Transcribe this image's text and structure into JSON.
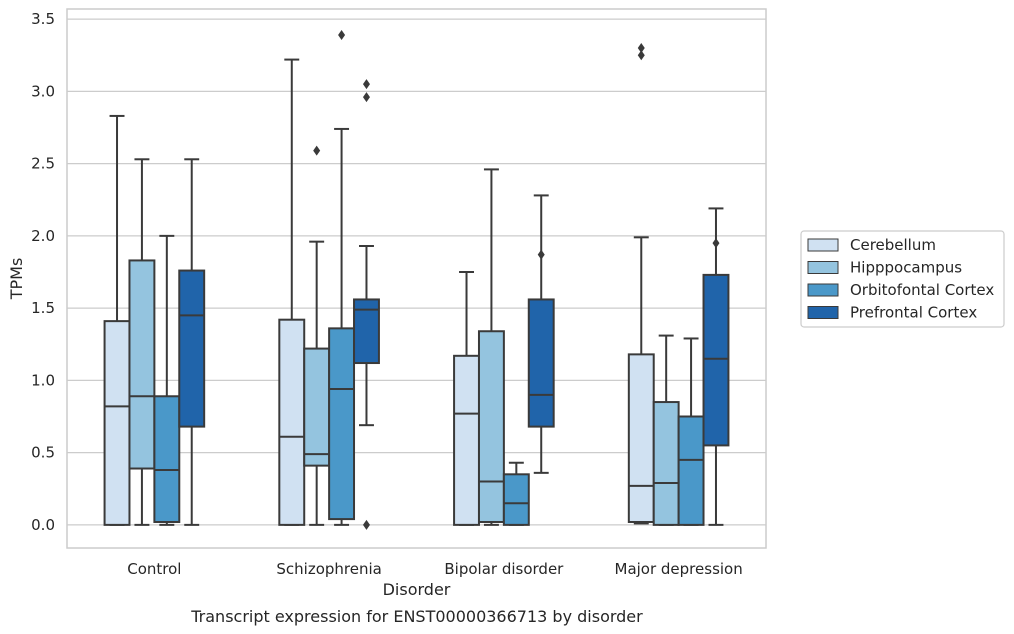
{
  "chart_data": {
    "type": "box",
    "caption": "Transcript expression for ENST00000366713 by disorder",
    "xlabel": "Disorder",
    "ylabel": "TPMs",
    "ylim": [
      -0.16,
      3.57
    ],
    "yticks": [
      "0.0",
      "0.5",
      "1.0",
      "1.5",
      "2.0",
      "2.5",
      "3.0",
      "3.5"
    ],
    "ytick_values": [
      0,
      0.5,
      1.0,
      1.5,
      2.0,
      2.5,
      3.0,
      3.5
    ],
    "grid": "horizontal",
    "legend_position": "right",
    "categories": [
      "Control",
      "Schizophrenia",
      "Bipolar disorder",
      "Major depression"
    ],
    "series": [
      {
        "name": "Cerebellum",
        "color": "#d0e1f2",
        "boxes": [
          {
            "whislo": 0.0,
            "q1": 0.0,
            "med": 0.82,
            "q3": 1.41,
            "whishi": 2.83,
            "fliers": []
          },
          {
            "whislo": 0.0,
            "q1": 0.0,
            "med": 0.61,
            "q3": 1.42,
            "whishi": 3.22,
            "fliers": []
          },
          {
            "whislo": 0.0,
            "q1": 0.0,
            "med": 0.77,
            "q3": 1.17,
            "whishi": 1.75,
            "fliers": []
          },
          {
            "whislo": 0.01,
            "q1": 0.02,
            "med": 0.27,
            "q3": 1.18,
            "whishi": 1.99,
            "fliers": [
              3.25,
              3.3
            ]
          }
        ]
      },
      {
        "name": "Hipppocampus",
        "color": "#94c4df",
        "boxes": [
          {
            "whislo": 0.0,
            "q1": 0.39,
            "med": 0.89,
            "q3": 1.83,
            "whishi": 2.53,
            "fliers": []
          },
          {
            "whislo": 0.0,
            "q1": 0.41,
            "med": 0.49,
            "q3": 1.22,
            "whishi": 1.96,
            "fliers": [
              2.59
            ]
          },
          {
            "whislo": 0.0,
            "q1": 0.02,
            "med": 0.3,
            "q3": 1.34,
            "whishi": 2.46,
            "fliers": []
          },
          {
            "whislo": 0.0,
            "q1": 0.0,
            "med": 0.29,
            "q3": 0.85,
            "whishi": 1.31,
            "fliers": []
          }
        ]
      },
      {
        "name": "Orbitofontal Cortex",
        "color": "#4a98c9",
        "boxes": [
          {
            "whislo": 0.0,
            "q1": 0.02,
            "med": 0.38,
            "q3": 0.89,
            "whishi": 2.0,
            "fliers": []
          },
          {
            "whislo": 0.0,
            "q1": 0.04,
            "med": 0.94,
            "q3": 1.36,
            "whishi": 2.74,
            "fliers": [
              3.39
            ]
          },
          {
            "whislo": 0.0,
            "q1": 0.0,
            "med": 0.15,
            "q3": 0.35,
            "whishi": 0.43,
            "fliers": []
          },
          {
            "whislo": 0.0,
            "q1": 0.0,
            "med": 0.45,
            "q3": 0.75,
            "whishi": 1.29,
            "fliers": []
          }
        ]
      },
      {
        "name": "Prefrontal Cortex",
        "color": "#2064aa",
        "boxes": [
          {
            "whislo": 0.0,
            "q1": 0.68,
            "med": 1.45,
            "q3": 1.76,
            "whishi": 2.53,
            "fliers": []
          },
          {
            "whislo": 0.69,
            "q1": 1.12,
            "med": 1.49,
            "q3": 1.56,
            "whishi": 1.93,
            "fliers": [
              0.0,
              2.96,
              3.05
            ]
          },
          {
            "whislo": 0.36,
            "q1": 0.68,
            "med": 0.9,
            "q3": 1.56,
            "whishi": 2.28,
            "fliers": [
              1.87
            ]
          },
          {
            "whislo": 0.0,
            "q1": 0.55,
            "med": 1.15,
            "q3": 1.73,
            "whishi": 2.19,
            "fliers": [
              1.95
            ]
          }
        ]
      }
    ]
  }
}
